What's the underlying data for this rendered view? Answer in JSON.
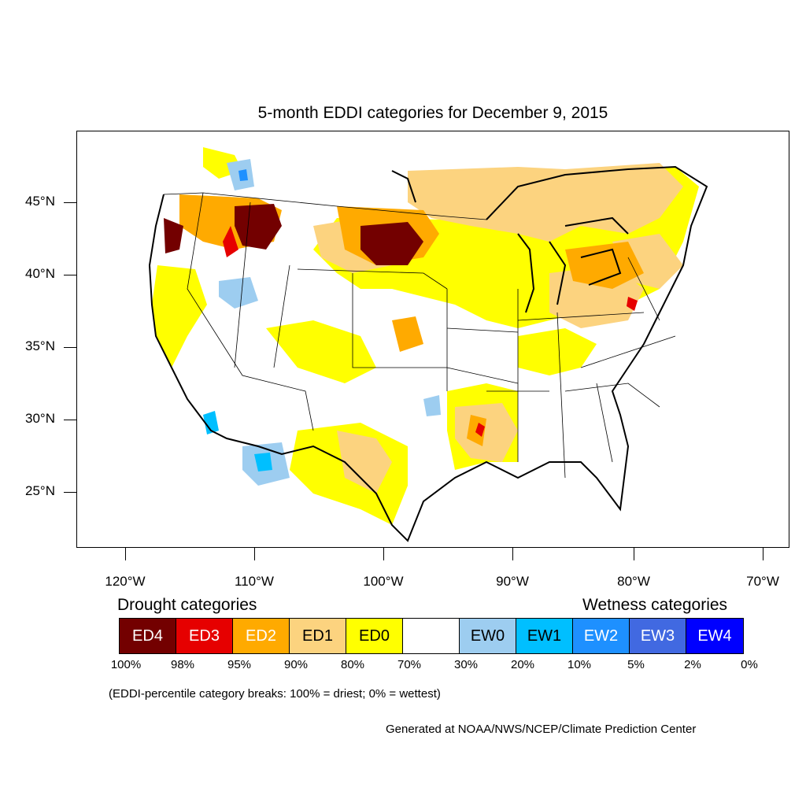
{
  "title": "5-month EDDI categories for December 9, 2015",
  "lat_labels": [
    "45°N",
    "40°N",
    "35°N",
    "30°N",
    "25°N"
  ],
  "lon_labels": [
    "120°W",
    "110°W",
    "100°W",
    "90°W",
    "80°W",
    "70°W"
  ],
  "drought_heading": "Drought categories",
  "wetness_heading": "Wetness categories",
  "legend": [
    {
      "label": "ED4",
      "color": "#730000",
      "text_color": "#ffffff"
    },
    {
      "label": "ED3",
      "color": "#e60000",
      "text_color": "#ffffff"
    },
    {
      "label": "ED2",
      "color": "#ffaa00",
      "text_color": "#ffffff"
    },
    {
      "label": "ED1",
      "color": "#fcd37f",
      "text_color": "#000000"
    },
    {
      "label": "ED0",
      "color": "#ffff00",
      "text_color": "#000000"
    },
    {
      "label": "",
      "color": "#ffffff",
      "text_color": "#000000"
    },
    {
      "label": "EW0",
      "color": "#9dcdf0",
      "text_color": "#000000"
    },
    {
      "label": "EW1",
      "color": "#00bfff",
      "text_color": "#000000"
    },
    {
      "label": "EW2",
      "color": "#1e90ff",
      "text_color": "#ffffff"
    },
    {
      "label": "EW3",
      "color": "#4169e1",
      "text_color": "#ffffff"
    },
    {
      "label": "EW4",
      "color": "#0000ff",
      "text_color": "#ffffff"
    }
  ],
  "percent_labels": [
    "100%",
    "98%",
    "95%",
    "90%",
    "80%",
    "70%",
    "30%",
    "20%",
    "10%",
    "5%",
    "2%",
    "0%"
  ],
  "note": "(EDDI-percentile category breaks: 100% = driest; 0% = wettest)",
  "credit": "Generated at NOAA/NWS/NCEP/Climate Prediction Center"
}
